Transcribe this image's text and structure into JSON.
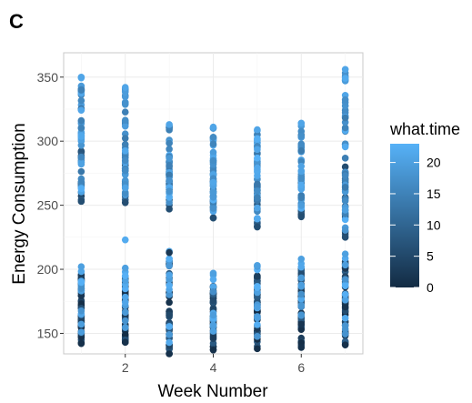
{
  "panel_label": "C",
  "chart_data": {
    "type": "scatter",
    "title": "",
    "xlabel": "Week Number",
    "ylabel": "Energy Consumption",
    "xlim": [
      0.6,
      7.4
    ],
    "ylim": [
      134,
      369
    ],
    "x_ticks": [
      2,
      4,
      6
    ],
    "y_ticks": [
      150,
      200,
      250,
      300,
      350
    ],
    "grid": true,
    "legend_placement": "right",
    "color_scale": {
      "title": "what.time",
      "min": 0,
      "max": 23,
      "ticks": [
        0,
        5,
        10,
        15,
        20
      ],
      "low_color": "#132b43",
      "high_color": "#56b1f7"
    },
    "columns": [
      {
        "week": 1,
        "low": [
          142,
          202
        ],
        "high": [
          253,
          350
        ]
      },
      {
        "week": 2,
        "low": [
          143,
          201
        ],
        "high": [
          252,
          342
        ]
      },
      {
        "week": 3,
        "low": [
          134,
          214
        ],
        "high": [
          247,
          313
        ]
      },
      {
        "week": 4,
        "low": [
          137,
          197
        ],
        "high": [
          240,
          311
        ]
      },
      {
        "week": 5,
        "low": [
          138,
          203
        ],
        "high": [
          233,
          309
        ]
      },
      {
        "week": 6,
        "low": [
          139,
          208
        ],
        "high": [
          241,
          314
        ]
      },
      {
        "week": 7,
        "low": [
          141,
          212
        ],
        "high": [
          225,
          356
        ]
      }
    ],
    "outliers": [
      {
        "x": 2,
        "y": 223,
        "time": 22
      },
      {
        "x": 3,
        "y": 213,
        "time": 2
      }
    ]
  }
}
